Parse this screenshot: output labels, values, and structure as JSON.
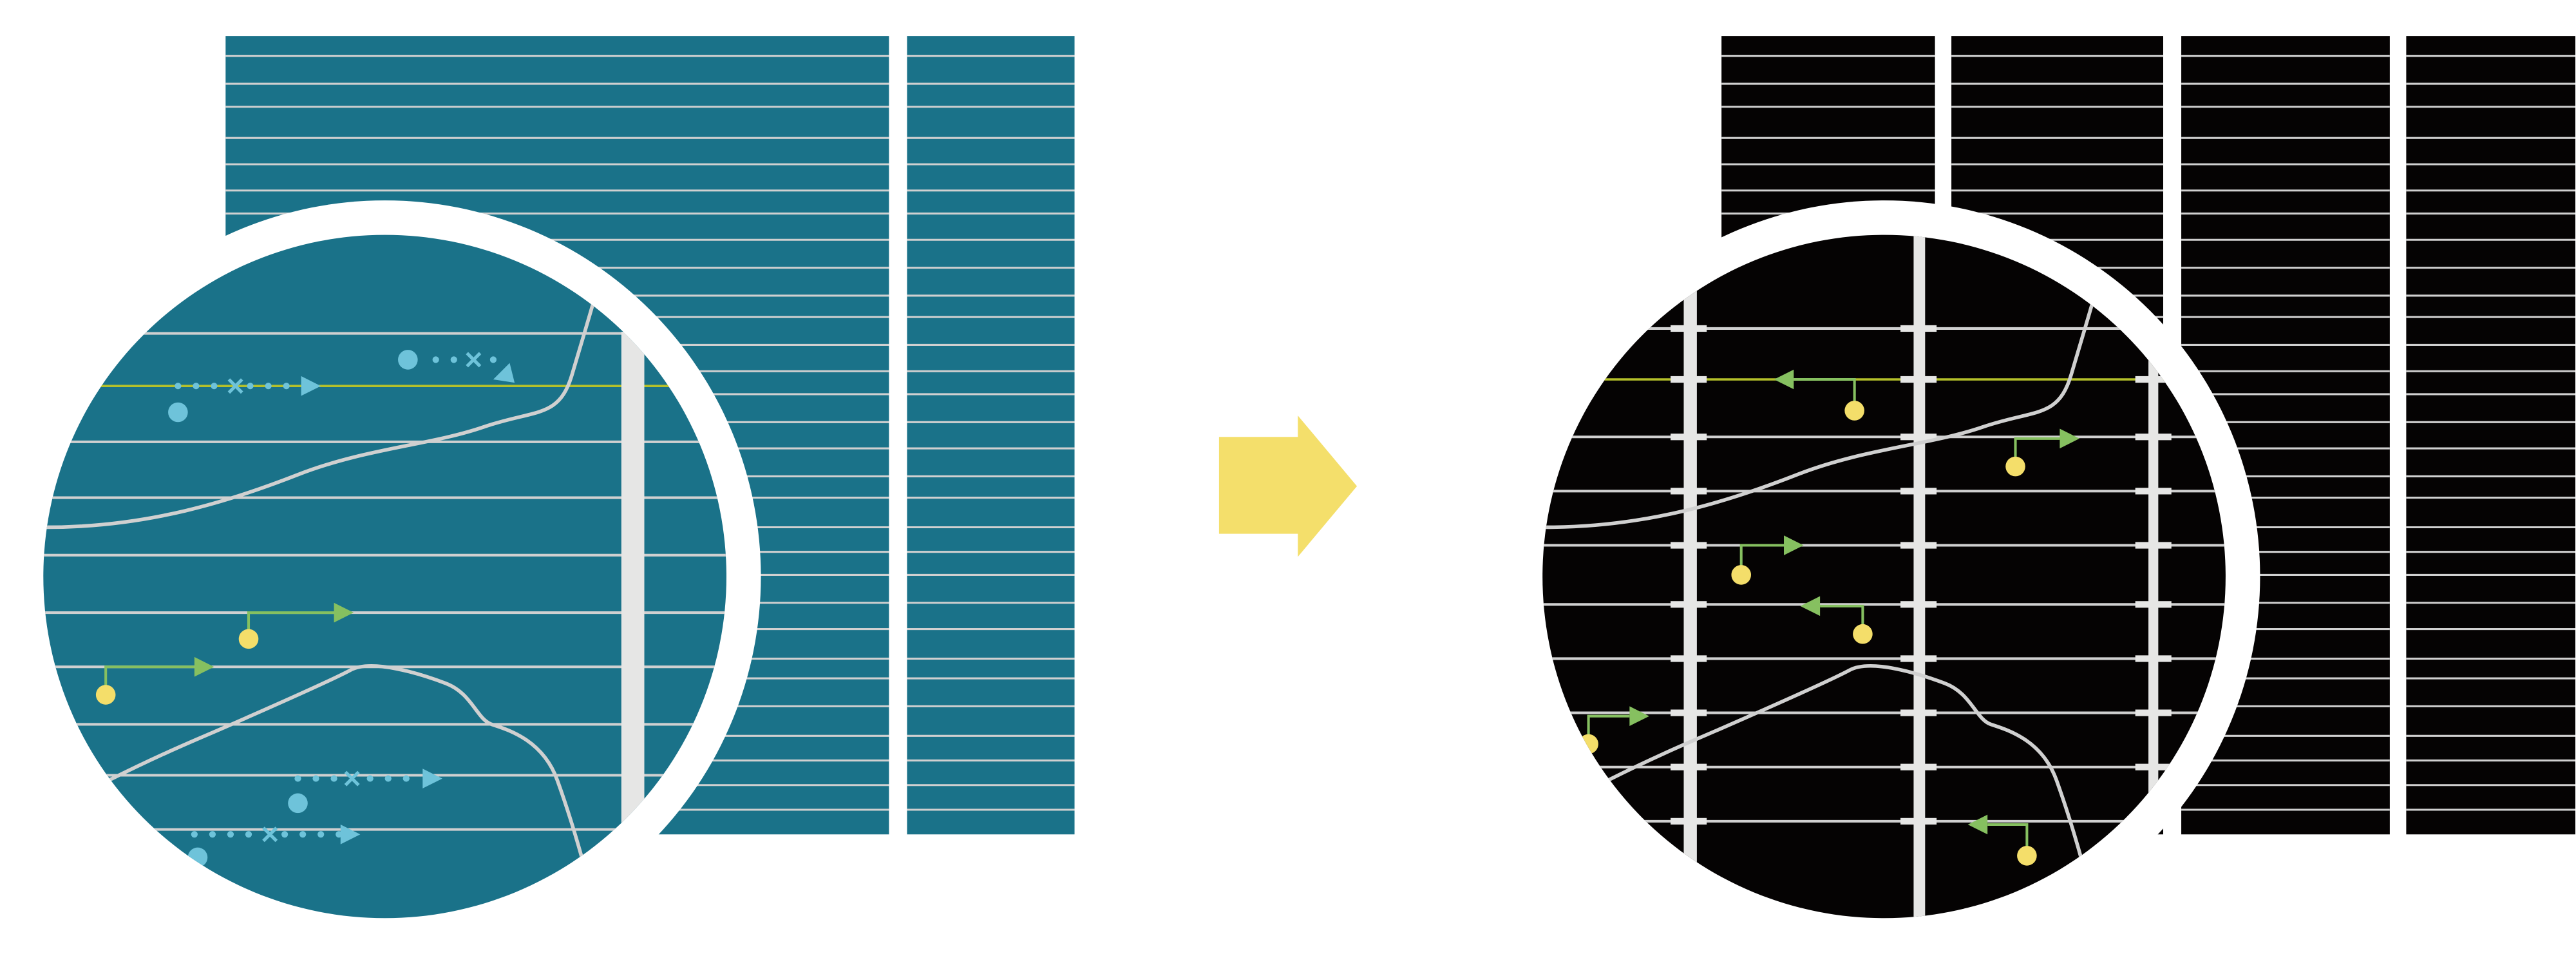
{
  "colors": {
    "background": "#ffffff",
    "teal_panel": "#1a7289",
    "black_panel": "#050303",
    "grid_line": "#d0d0d0",
    "vertical_bar": "#e6e6e5",
    "highlight_line": "#b5c12a",
    "blue_marker": "#6ec3da",
    "green_arrow": "#86c060",
    "yellow_dot": "#f4de6a",
    "transform_arrow": "#f4df6b",
    "curve": "#d0d0d0"
  },
  "icons": {
    "transform": "right-arrow-icon",
    "blue_track": "dotted-arrow-icon",
    "green_track": "pin-arrow-icon"
  },
  "left_panel": {
    "description_of_state": "before",
    "blue_tracks": [
      {
        "direction": "right"
      },
      {
        "direction": "down-left"
      },
      {
        "direction": "right"
      },
      {
        "direction": "right"
      }
    ],
    "green_tracks": [
      {
        "direction": "right"
      },
      {
        "direction": "right"
      }
    ]
  },
  "right_panel": {
    "description_of_state": "after",
    "green_tracks": [
      {
        "direction": "left"
      },
      {
        "direction": "right"
      },
      {
        "direction": "right"
      },
      {
        "direction": "left"
      },
      {
        "direction": "right"
      },
      {
        "direction": "left"
      }
    ]
  }
}
